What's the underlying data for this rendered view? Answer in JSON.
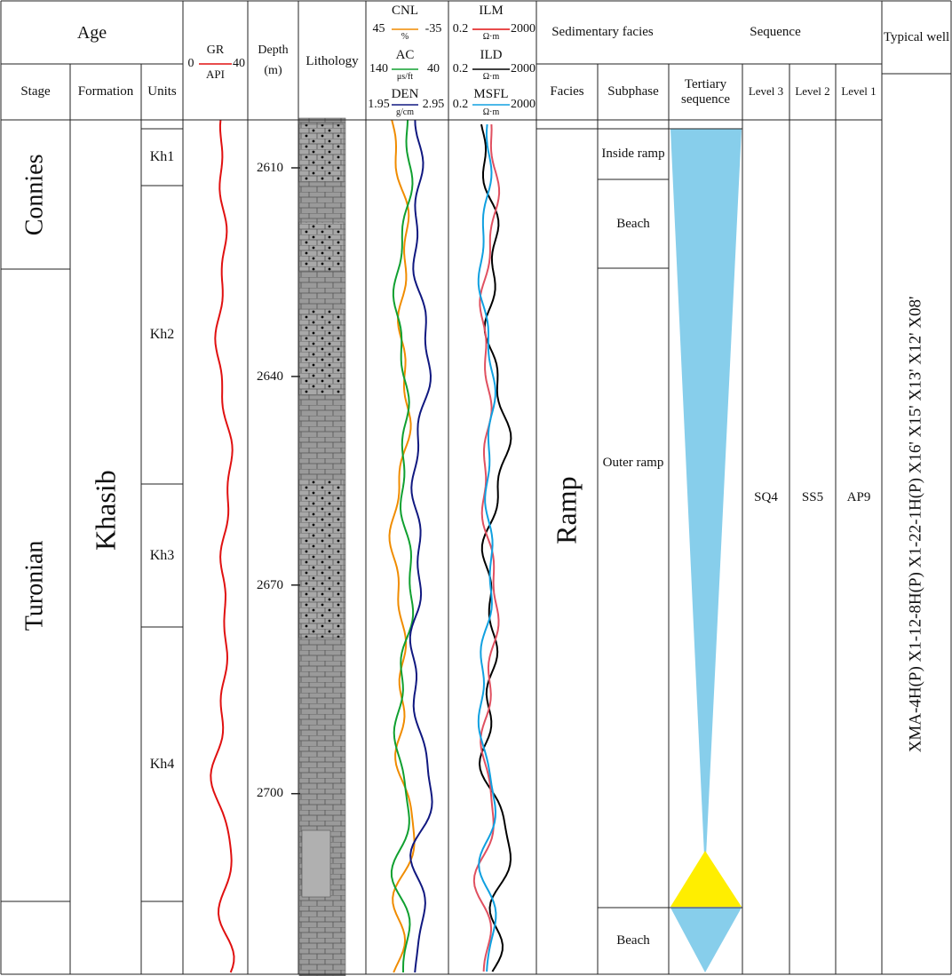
{
  "header": {
    "age": "Age",
    "stage": "Stage",
    "formation": "Formation",
    "units": "Units",
    "gr": {
      "name": "GR",
      "unit": "API",
      "min": "0",
      "max": "40"
    },
    "depth": {
      "title": "Depth",
      "unit": "(m)"
    },
    "lithology": "Lithology",
    "logs_a": [
      {
        "name": "CNL",
        "unit": "%",
        "min": "45",
        "max": "-35"
      },
      {
        "name": "AC",
        "unit": "μs/ft",
        "min": "140",
        "max": "40"
      },
      {
        "name": "DEN",
        "unit": "g/cm",
        "min": "1.95",
        "max": "2.95"
      }
    ],
    "logs_b": [
      {
        "name": "ILM",
        "unit": "Ω·m",
        "min": "0.2",
        "max": "2000"
      },
      {
        "name": "ILD",
        "unit": "Ω·m",
        "min": "0.2",
        "max": "2000"
      },
      {
        "name": "MSFL",
        "unit": "Ω·m",
        "min": "0.2",
        "max": "2000"
      }
    ],
    "sedimentary_facies": "Sedimentary facies",
    "facies": "Facies",
    "subphase": "Subphase",
    "sequence": "Sequence",
    "tertiary_sequence": "Tertiary sequence",
    "level3": "Level 3",
    "level2": "Level 2",
    "level1": "Level 1",
    "typical_well": "Typical well"
  },
  "body": {
    "stages": [
      "Connies",
      "Turonian"
    ],
    "formation": "Khasib",
    "units": [
      "Kh1",
      "Kh2",
      "Kh3",
      "Kh4"
    ],
    "depth_ticks": [
      2610,
      2640,
      2670,
      2700
    ],
    "facies": "Ramp",
    "subphases": [
      "Inside ramp",
      "Beach",
      "Outer ramp",
      "Beach"
    ],
    "level3": "SQ4",
    "level2": "SS5",
    "level1": "AP9",
    "typical_wells": "XMA-4H(P)   X1-12-8H(P)   X1-22-1H(P)   X16'   X15'   X13'   X12'   X08'"
  }
}
